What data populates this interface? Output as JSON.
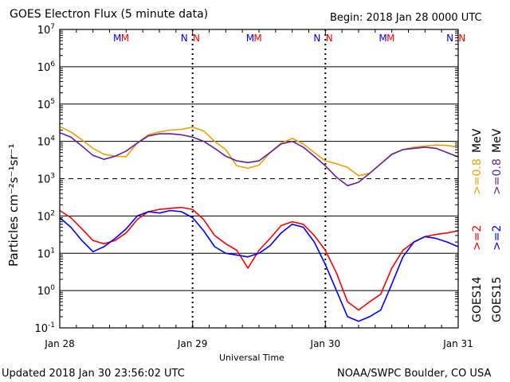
{
  "header": {
    "title": "GOES Electron Flux (5 minute data)",
    "begin": "Begin: 2018 Jan 28 0000 UTC"
  },
  "footer": {
    "updated": "Updated 2018 Jan 30 23:56:02 UTC",
    "credit": "NOAA/SWPC Boulder, CO USA"
  },
  "chart_data": {
    "type": "line",
    "title": "GOES Electron Flux (5 minute data)",
    "xlabel": "Universal Time",
    "ylabel": "Particles cm⁻²s⁻¹sr⁻¹",
    "yscale": "log",
    "xlim": [
      0,
      72
    ],
    "ylim": [
      0.1,
      10000000
    ],
    "x_unit": "hours since 2018 Jan 28 0000 UTC",
    "x_ticks": [
      {
        "x": 0,
        "label": "Jan 28"
      },
      {
        "x": 24,
        "label": "Jan 29"
      },
      {
        "x": 48,
        "label": "Jan 30"
      },
      {
        "x": 72,
        "label": "Jan 31"
      }
    ],
    "y_ticks": [
      {
        "y": 0.1,
        "base": "10",
        "exp": "-1"
      },
      {
        "y": 1,
        "base": "10",
        "exp": "0"
      },
      {
        "y": 10,
        "base": "10",
        "exp": "1"
      },
      {
        "y": 100,
        "base": "10",
        "exp": "2"
      },
      {
        "y": 1000,
        "base": "10",
        "exp": "3"
      },
      {
        "y": 10000,
        "base": "10",
        "exp": "4"
      },
      {
        "y": 100000,
        "base": "10",
        "exp": "5"
      },
      {
        "y": 1000000,
        "base": "10",
        "exp": "6"
      },
      {
        "y": 10000000,
        "base": "10",
        "exp": "7"
      }
    ],
    "grid": true,
    "threshold": {
      "y": 1000,
      "style": "dashed"
    },
    "day_boundaries": [
      24,
      48
    ],
    "markers": [
      {
        "x": 10.4,
        "label": "M",
        "color": "#0000ff"
      },
      {
        "x": 11.8,
        "label": "M",
        "color": "#ff0000"
      },
      {
        "x": 22.5,
        "label": "N",
        "color": "#0000ff"
      },
      {
        "x": 24.7,
        "label": "N",
        "color": "#ff0000"
      },
      {
        "x": 34.4,
        "label": "M",
        "color": "#0000ff"
      },
      {
        "x": 35.8,
        "label": "M",
        "color": "#ff0000"
      },
      {
        "x": 46.5,
        "label": "N",
        "color": "#0000ff"
      },
      {
        "x": 48.7,
        "label": "N",
        "color": "#ff0000"
      },
      {
        "x": 58.4,
        "label": "M",
        "color": "#0000ff"
      },
      {
        "x": 59.8,
        "label": "M",
        "color": "#ff0000"
      },
      {
        "x": 70.5,
        "label": "N",
        "color": "#0000ff"
      },
      {
        "x": 72.7,
        "label": "N",
        "color": "#ff0000"
      }
    ],
    "series": [
      {
        "name": "GOES14 >=0.8 MeV",
        "color": "#f0a000",
        "x": [
          0,
          2,
          4,
          6,
          8,
          10,
          12,
          14,
          16,
          18,
          20,
          22,
          24,
          26,
          28,
          30,
          32,
          34,
          36,
          38,
          40,
          42,
          44,
          46,
          48,
          50,
          52,
          54,
          56,
          58,
          60,
          62,
          64,
          66,
          68,
          70,
          72
        ],
        "y": [
          25000,
          18000,
          11000,
          6500,
          4500,
          4000,
          3900,
          9000,
          15000,
          18000,
          20000,
          21000,
          24000,
          19000,
          10000,
          6000,
          2200,
          1900,
          2300,
          5000,
          9000,
          12000,
          8500,
          5000,
          3000,
          2500,
          2000,
          1200,
          1400,
          2500,
          4500,
          6000,
          7000,
          7500,
          8000,
          7800,
          7000
        ]
      },
      {
        "name": "GOES15 >=0.8 MeV",
        "color": "#6020a0",
        "x": [
          0,
          2,
          4,
          6,
          8,
          10,
          12,
          14,
          16,
          18,
          20,
          22,
          24,
          26,
          28,
          30,
          32,
          34,
          36,
          38,
          40,
          42,
          44,
          46,
          48,
          50,
          52,
          54,
          56,
          58,
          60,
          62,
          64,
          66,
          68,
          70,
          72
        ],
        "y": [
          17000,
          13000,
          7500,
          4200,
          3300,
          4000,
          5500,
          9000,
          14000,
          16000,
          16000,
          15000,
          13000,
          10000,
          6500,
          4000,
          3000,
          2700,
          3000,
          5000,
          8500,
          10000,
          7000,
          4000,
          2200,
          1100,
          650,
          800,
          1400,
          2500,
          4500,
          6000,
          6500,
          7000,
          6500,
          5000,
          3800
        ]
      },
      {
        "name": "GOES14 >=2 MeV",
        "color": "#ff0000",
        "x": [
          0,
          2,
          4,
          6,
          8,
          10,
          12,
          14,
          16,
          18,
          20,
          22,
          24,
          26,
          28,
          30,
          32,
          34,
          36,
          38,
          40,
          42,
          44,
          46,
          48,
          50,
          52,
          54,
          56,
          58,
          60,
          62,
          64,
          66,
          68,
          70,
          72
        ],
        "y": [
          140,
          90,
          45,
          22,
          18,
          22,
          35,
          80,
          130,
          150,
          160,
          170,
          150,
          80,
          30,
          18,
          12,
          4,
          12,
          25,
          55,
          70,
          60,
          30,
          12,
          3,
          0.5,
          0.3,
          0.5,
          0.8,
          4,
          12,
          20,
          28,
          32,
          35,
          40
        ]
      },
      {
        "name": "GOES15 >=2 MeV",
        "color": "#0000ff",
        "x": [
          0,
          2,
          4,
          6,
          8,
          10,
          12,
          14,
          16,
          18,
          20,
          22,
          24,
          26,
          28,
          30,
          32,
          34,
          36,
          38,
          40,
          42,
          44,
          46,
          48,
          50,
          52,
          54,
          56,
          58,
          60,
          62,
          64,
          66,
          68,
          70,
          72
        ],
        "y": [
          90,
          50,
          22,
          11,
          15,
          25,
          45,
          100,
          130,
          120,
          140,
          130,
          90,
          40,
          15,
          10,
          9,
          8,
          10,
          16,
          35,
          60,
          50,
          20,
          5,
          1,
          0.2,
          0.15,
          0.2,
          0.3,
          1.5,
          8,
          20,
          28,
          25,
          20,
          15
        ]
      }
    ],
    "legend_right": [
      {
        "text": "GOES14",
        "color": "#000000",
        "column": "left"
      },
      {
        "text": ">=2",
        "color": "#ff0000",
        "column": "left"
      },
      {
        "text": ">=0.8",
        "color": "#f0a000",
        "column": "left"
      },
      {
        "text": "GOES15",
        "color": "#000000",
        "column": "right"
      },
      {
        "text": ">=2",
        "color": "#0000ff",
        "column": "right"
      },
      {
        "text": ">=0.8",
        "color": "#6020a0",
        "column": "right"
      },
      {
        "text": "MeV",
        "color": "#000000",
        "column": "left"
      },
      {
        "text": "MeV",
        "color": "#000000",
        "column": "right"
      }
    ]
  }
}
